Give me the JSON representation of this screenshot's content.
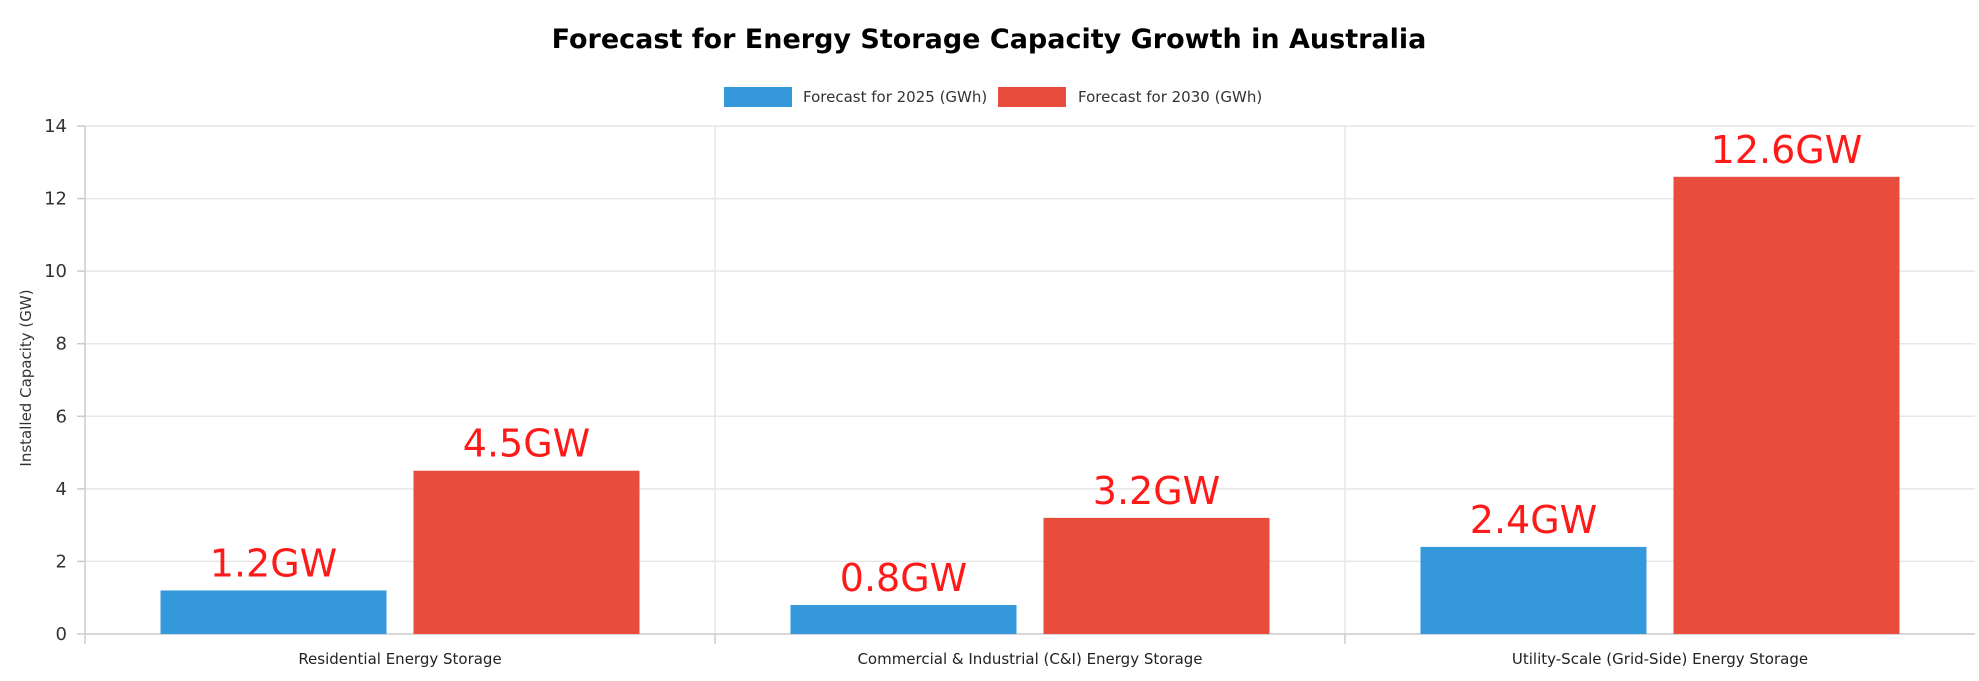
{
  "chart_data": {
    "type": "bar",
    "title": "Forecast for Energy Storage Capacity Growth in Australia",
    "ylabel": "Installed Capacity (GW)",
    "xlabel": "",
    "categories": [
      "Residential Energy Storage",
      "Commercial & Industrial (C&I) Energy Storage",
      "Utility-Scale (Grid-Side) Energy Storage"
    ],
    "series": [
      {
        "name": "Forecast for 2025 (GWh)",
        "values": [
          1.2,
          0.8,
          2.4
        ],
        "labels": [
          "1.2GW",
          "0.8GW",
          "2.4GW"
        ],
        "color": "#3498db"
      },
      {
        "name": "Forecast for 2030 (GWh)",
        "values": [
          4.5,
          3.2,
          12.6
        ],
        "labels": [
          "4.5GW",
          "3.2GW",
          "12.6GW"
        ],
        "color": "#e74c3c"
      }
    ],
    "ylim": [
      0,
      14
    ],
    "yticks": [
      "0",
      "2",
      "4",
      "6",
      "8",
      "10",
      "12",
      "14"
    ],
    "grid": true,
    "legend_position": "top-center",
    "data_label_color": "#ff1a1a"
  }
}
